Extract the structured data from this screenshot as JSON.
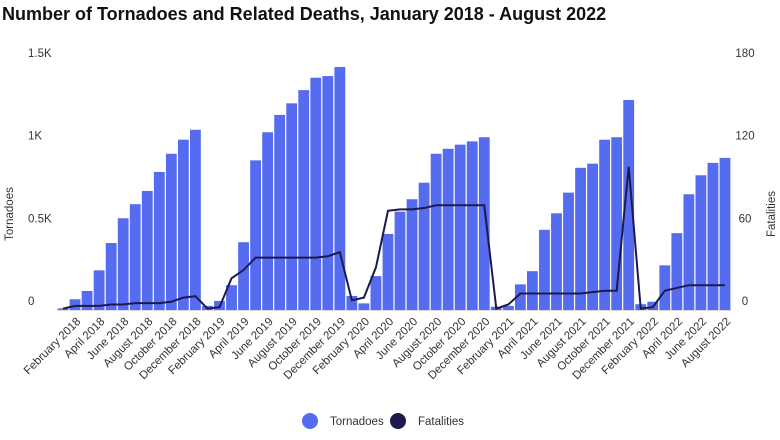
{
  "chart_data": {
    "type": "bar_line",
    "title": "Number of Tornadoes and Related Deaths, January 2018 - August 2022",
    "categories": [
      null,
      "February 2018",
      null,
      "April 2018",
      null,
      "June 2018",
      null,
      "August 2018",
      null,
      "October 2018",
      null,
      "December 2018",
      null,
      "February 2019",
      null,
      "April 2019",
      null,
      "June 2019",
      null,
      "August 2019",
      null,
      "October 2019",
      null,
      "December 2019",
      null,
      "February 2020",
      null,
      "April 2020",
      null,
      "June 2020",
      null,
      "August 2020",
      null,
      "October 2020",
      null,
      "December 2020",
      null,
      "February 2021",
      null,
      "April 2021",
      null,
      "June 2021",
      null,
      "August 2021",
      null,
      "October 2021",
      null,
      "December 2021",
      null,
      "February 2022",
      null,
      "April 2022",
      null,
      "June 2022",
      null,
      "August 2022"
    ],
    "series": [
      {
        "name": "Tornadoes",
        "color": "#566cf0",
        "axis": "y",
        "values": [
          10,
          65,
          115,
          240,
          405,
          555,
          640,
          720,
          835,
          945,
          1030,
          1090,
          25,
          55,
          150,
          410,
          905,
          1075,
          1180,
          1250,
          1330,
          1405,
          1415,
          1470,
          85,
          40,
          205,
          460,
          595,
          670,
          770,
          945,
          975,
          1000,
          1020,
          1045,
          20,
          25,
          155,
          235,
          485,
          585,
          710,
          860,
          885,
          1030,
          1045,
          1270,
          35,
          50,
          270,
          465,
          700,
          815,
          890,
          920
        ]
      },
      {
        "name": "Fatalities",
        "color": "#1c1a4a",
        "axis": "y2",
        "values": [
          1,
          3,
          3,
          3,
          4,
          4,
          5,
          5,
          5,
          6,
          9,
          10,
          1,
          2,
          23,
          29,
          38,
          38,
          38,
          38,
          38,
          38,
          39,
          42,
          7,
          9,
          31,
          72,
          73,
          73,
          74,
          76,
          76,
          76,
          76,
          76,
          1,
          4,
          12,
          12,
          12,
          12,
          12,
          12,
          13,
          14,
          14,
          104,
          1,
          2,
          14,
          16,
          18,
          18,
          18,
          18
        ]
      }
    ],
    "y_label": "Tornadoes",
    "y2_label": "Fatalities",
    "ylim": [
      0,
      1500
    ],
    "yticks": [
      0,
      {
        "value": 500,
        "label": "0.5K"
      },
      {
        "value": 1000,
        "label": "1K"
      },
      {
        "value": 1500,
        "label": "1.5K"
      }
    ],
    "y2lim": [
      0,
      180
    ],
    "y2ticks": [
      0,
      60,
      120,
      180
    ],
    "legend": "bottom"
  }
}
